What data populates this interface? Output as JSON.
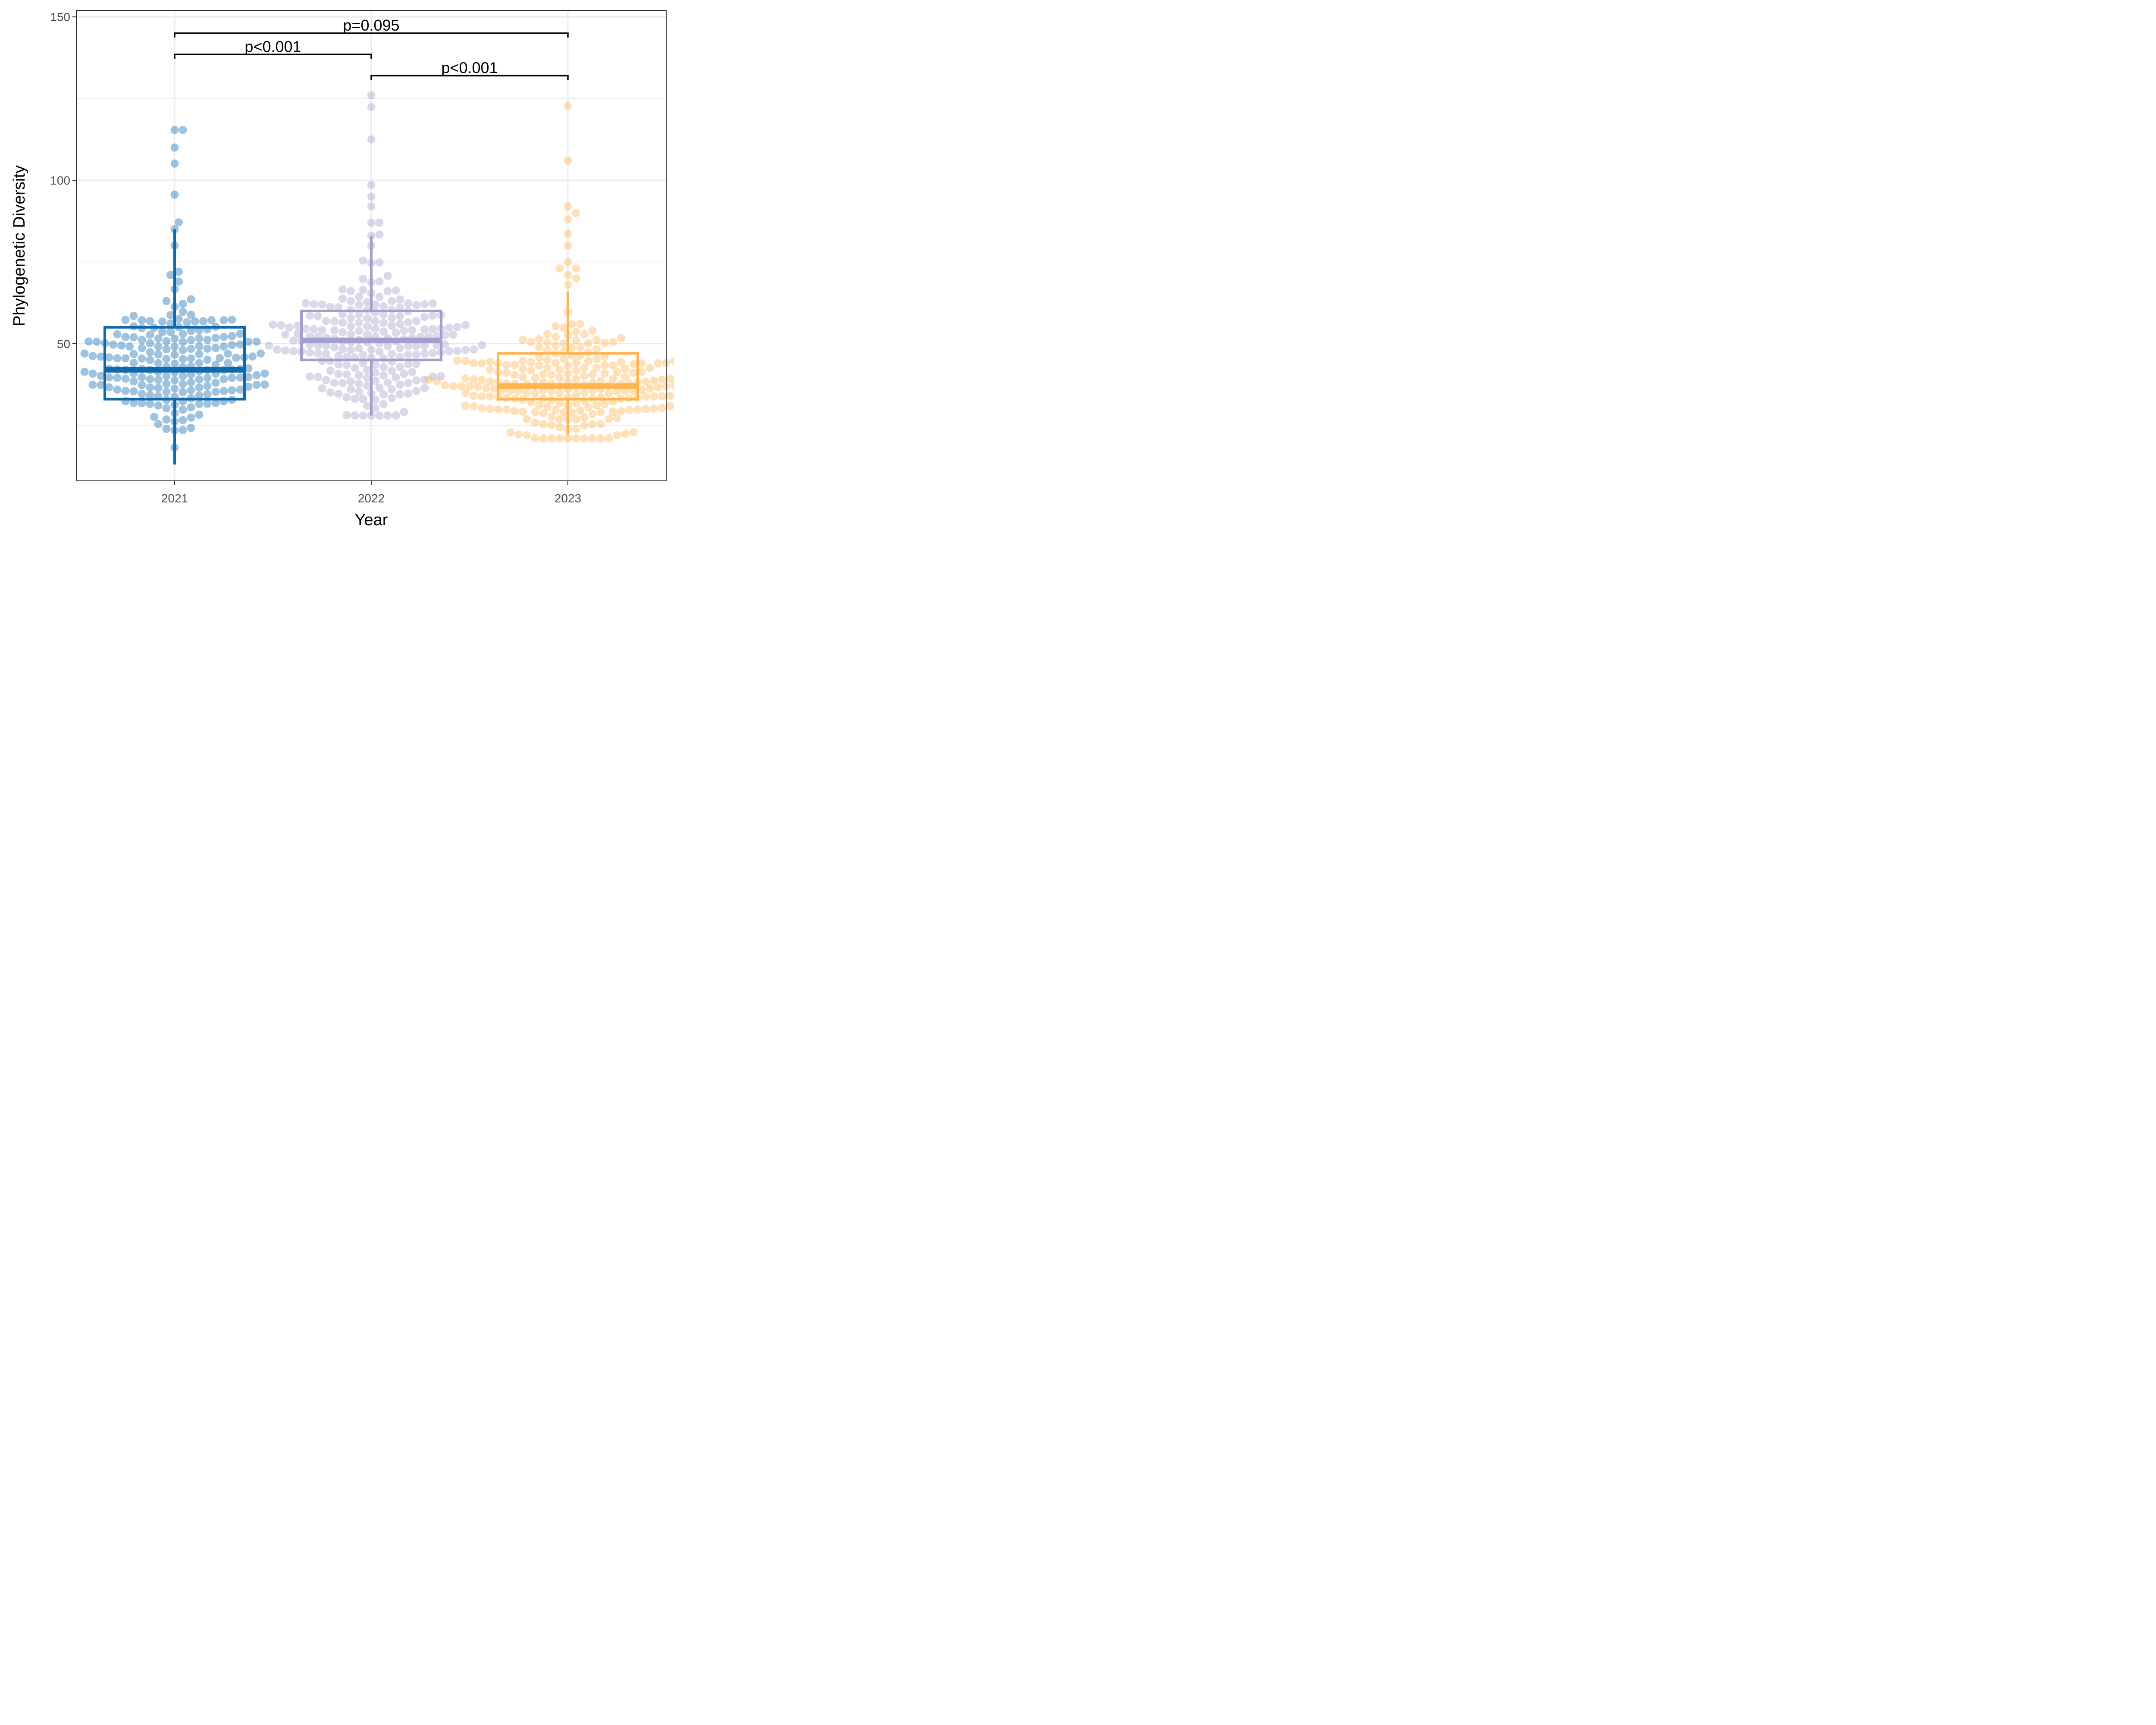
{
  "chart_data": {
    "type": "boxplot",
    "xlabel": "Year",
    "ylabel": "Phylogenetic Diversity",
    "ylim": [
      8,
      152
    ],
    "yticks": [
      50,
      100,
      150
    ],
    "grid": true,
    "categories": [
      "2021",
      "2022",
      "2023"
    ],
    "colors": {
      "2021": "#1069ad",
      "2022": "#a39fcb",
      "2023": "#fdb451"
    },
    "boxes": [
      {
        "name": "2021",
        "q1": 33,
        "median": 42,
        "q3": 55,
        "whisker_low": 13,
        "whisker_high": 85
      },
      {
        "name": "2022",
        "q1": 45,
        "median": 51,
        "q3": 60,
        "whisker_low": 28,
        "whisker_high": 83
      },
      {
        "name": "2023",
        "q1": 33,
        "median": 37,
        "q3": 47,
        "whisker_low": 22,
        "whisker_high": 66
      }
    ],
    "points": [
      {
        "name": "2021",
        "outliers": [
          115.4,
          115.4,
          110.0,
          105.1,
          95.6,
          87.1,
          85.0,
          80.0,
          72.0,
          71.0,
          69.0
        ],
        "min": 13,
        "max": 68,
        "center": 43,
        "n": 200
      },
      {
        "name": "2022",
        "outliers": [
          126.0,
          122.4,
          112.5,
          98.6,
          95.0,
          92.0,
          87.0,
          87.0,
          83.4,
          83.0
        ],
        "min": 28,
        "max": 82,
        "center": 50,
        "n": 220
      },
      {
        "name": "2023",
        "outliers": [
          122.7,
          106.0,
          92.0,
          90.0,
          88.0,
          83.6,
          80.0,
          75.0,
          73.0,
          73.0,
          71.0,
          70.0,
          68.0
        ],
        "min": 21,
        "max": 66,
        "center": 37,
        "n": 240
      }
    ],
    "comparisons": [
      {
        "from": "2021",
        "to": "2023",
        "y": 145,
        "label": "p=0.095"
      },
      {
        "from": "2021",
        "to": "2022",
        "y": 138.5,
        "label": "p<0.001"
      },
      {
        "from": "2022",
        "to": "2023",
        "y": 132,
        "label": "p<0.001"
      }
    ]
  }
}
